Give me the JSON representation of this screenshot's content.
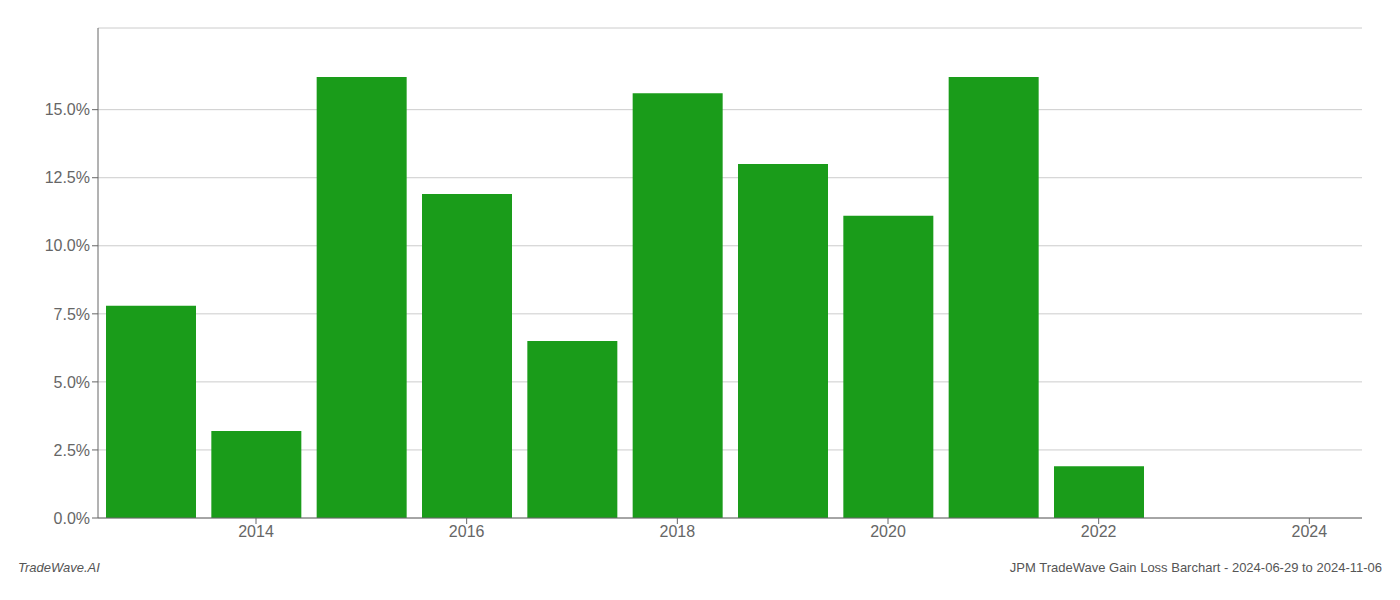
{
  "chart_data": {
    "type": "bar",
    "x": [
      2013,
      2014,
      2015,
      2016,
      2017,
      2018,
      2019,
      2020,
      2021,
      2022,
      2023
    ],
    "values": [
      0.078,
      0.032,
      0.162,
      0.119,
      0.065,
      0.156,
      0.13,
      0.111,
      0.162,
      0.019,
      0.0
    ],
    "color": "#1a9c1a",
    "xlim": [
      2012.5,
      2024.5
    ],
    "xticks": [
      2014,
      2016,
      2018,
      2020,
      2022,
      2024
    ],
    "ylim": [
      0,
      0.18
    ],
    "yticks": [
      {
        "value": 0.0,
        "label": "0.0%"
      },
      {
        "value": 0.025,
        "label": "2.5%"
      },
      {
        "value": 0.05,
        "label": "5.0%"
      },
      {
        "value": 0.075,
        "label": "7.5%"
      },
      {
        "value": 0.1,
        "label": "10.0%"
      },
      {
        "value": 0.125,
        "label": "12.5%"
      },
      {
        "value": 0.15,
        "label": "15.0%"
      }
    ],
    "grid": true,
    "annotations": [
      "TradeWave.AI",
      "JPM TradeWave Gain Loss Barchart - 2024-06-29 to 2024-11-06"
    ]
  }
}
